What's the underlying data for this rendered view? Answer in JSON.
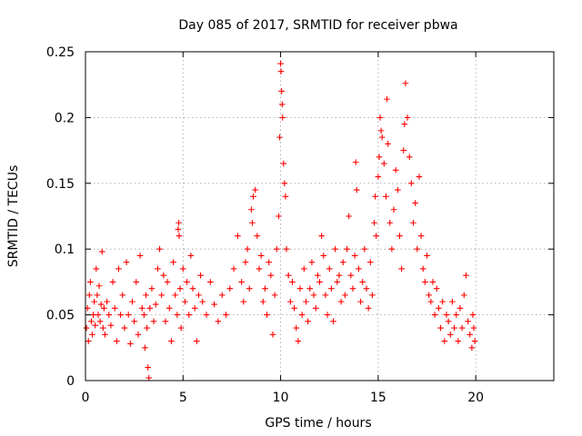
{
  "chart_data": {
    "type": "scatter",
    "title": "Day 085 of 2017, SRMTID for receiver pbwa",
    "xlabel": "GPS time / hours",
    "ylabel": "SRMTID / TECUs",
    "xlim": [
      0,
      24
    ],
    "ylim": [
      0,
      0.25
    ],
    "x_ticks": [
      0,
      5,
      10,
      15,
      20
    ],
    "x_tick_labels": [
      "0",
      "5",
      "10",
      "15",
      "20"
    ],
    "y_ticks": [
      0,
      0.05,
      0.1,
      0.15,
      0.2,
      0.25
    ],
    "y_tick_labels": [
      "0",
      "0.05",
      "0.1",
      "0.15",
      "0.2",
      "0.25"
    ],
    "grid": true,
    "marker": "+",
    "color": "#ff0000",
    "series": [
      {
        "name": "SRMTID",
        "points": [
          [
            0.05,
            0.04
          ],
          [
            0.1,
            0.055
          ],
          [
            0.15,
            0.03
          ],
          [
            0.2,
            0.065
          ],
          [
            0.25,
            0.075
          ],
          [
            0.3,
            0.045
          ],
          [
            0.35,
            0.035
          ],
          [
            0.4,
            0.05
          ],
          [
            0.45,
            0.06
          ],
          [
            0.5,
            0.042
          ],
          [
            0.55,
            0.085
          ],
          [
            0.6,
            0.065
          ],
          [
            0.65,
            0.05
          ],
          [
            0.7,
            0.072
          ],
          [
            0.75,
            0.045
          ],
          [
            0.8,
            0.058
          ],
          [
            0.85,
            0.098
          ],
          [
            0.9,
            0.04
          ],
          [
            0.95,
            0.055
          ],
          [
            1.0,
            0.035
          ],
          [
            1.1,
            0.06
          ],
          [
            1.2,
            0.05
          ],
          [
            1.3,
            0.042
          ],
          [
            1.4,
            0.075
          ],
          [
            1.5,
            0.055
          ],
          [
            1.6,
            0.03
          ],
          [
            1.7,
            0.085
          ],
          [
            1.8,
            0.05
          ],
          [
            1.9,
            0.065
          ],
          [
            2.0,
            0.04
          ],
          [
            2.1,
            0.09
          ],
          [
            2.2,
            0.05
          ],
          [
            2.3,
            0.028
          ],
          [
            2.4,
            0.06
          ],
          [
            2.5,
            0.045
          ],
          [
            2.6,
            0.075
          ],
          [
            2.7,
            0.035
          ],
          [
            2.8,
            0.095
          ],
          [
            2.9,
            0.055
          ],
          [
            3.0,
            0.05
          ],
          [
            3.05,
            0.025
          ],
          [
            3.1,
            0.065
          ],
          [
            3.15,
            0.04
          ],
          [
            3.2,
            0.01
          ],
          [
            3.25,
            0.002
          ],
          [
            3.3,
            0.055
          ],
          [
            3.4,
            0.07
          ],
          [
            3.5,
            0.045
          ],
          [
            3.6,
            0.058
          ],
          [
            3.7,
            0.085
          ],
          [
            3.8,
            0.1
          ],
          [
            3.9,
            0.065
          ],
          [
            4.0,
            0.08
          ],
          [
            4.1,
            0.045
          ],
          [
            4.2,
            0.075
          ],
          [
            4.3,
            0.055
          ],
          [
            4.4,
            0.03
          ],
          [
            4.5,
            0.09
          ],
          [
            4.6,
            0.065
          ],
          [
            4.7,
            0.05
          ],
          [
            4.75,
            0.115
          ],
          [
            4.78,
            0.12
          ],
          [
            4.8,
            0.11
          ],
          [
            4.85,
            0.07
          ],
          [
            4.9,
            0.04
          ],
          [
            5.0,
            0.085
          ],
          [
            5.1,
            0.06
          ],
          [
            5.2,
            0.075
          ],
          [
            5.3,
            0.05
          ],
          [
            5.4,
            0.095
          ],
          [
            5.5,
            0.07
          ],
          [
            5.6,
            0.055
          ],
          [
            5.7,
            0.03
          ],
          [
            5.8,
            0.065
          ],
          [
            5.9,
            0.08
          ],
          [
            6.0,
            0.06
          ],
          [
            6.2,
            0.05
          ],
          [
            6.4,
            0.075
          ],
          [
            6.6,
            0.058
          ],
          [
            6.8,
            0.045
          ],
          [
            7.0,
            0.065
          ],
          [
            7.2,
            0.05
          ],
          [
            7.4,
            0.07
          ],
          [
            7.6,
            0.085
          ],
          [
            7.8,
            0.11
          ],
          [
            8.0,
            0.075
          ],
          [
            8.1,
            0.06
          ],
          [
            8.2,
            0.09
          ],
          [
            8.3,
            0.1
          ],
          [
            8.4,
            0.07
          ],
          [
            8.5,
            0.13
          ],
          [
            8.55,
            0.12
          ],
          [
            8.6,
            0.14
          ],
          [
            8.7,
            0.145
          ],
          [
            8.8,
            0.11
          ],
          [
            8.9,
            0.085
          ],
          [
            9.0,
            0.095
          ],
          [
            9.1,
            0.06
          ],
          [
            9.2,
            0.07
          ],
          [
            9.3,
            0.05
          ],
          [
            9.4,
            0.09
          ],
          [
            9.5,
            0.08
          ],
          [
            9.6,
            0.035
          ],
          [
            9.7,
            0.065
          ],
          [
            9.8,
            0.1
          ],
          [
            9.9,
            0.125
          ],
          [
            9.95,
            0.185
          ],
          [
            10.0,
            0.241
          ],
          [
            10.02,
            0.235
          ],
          [
            10.05,
            0.22
          ],
          [
            10.08,
            0.21
          ],
          [
            10.1,
            0.2
          ],
          [
            10.15,
            0.165
          ],
          [
            10.2,
            0.15
          ],
          [
            10.25,
            0.14
          ],
          [
            10.3,
            0.1
          ],
          [
            10.4,
            0.08
          ],
          [
            10.5,
            0.06
          ],
          [
            10.6,
            0.075
          ],
          [
            10.7,
            0.055
          ],
          [
            10.8,
            0.04
          ],
          [
            10.9,
            0.03
          ],
          [
            11.0,
            0.07
          ],
          [
            11.1,
            0.05
          ],
          [
            11.2,
            0.085
          ],
          [
            11.3,
            0.06
          ],
          [
            11.4,
            0.045
          ],
          [
            11.5,
            0.07
          ],
          [
            11.6,
            0.09
          ],
          [
            11.7,
            0.065
          ],
          [
            11.8,
            0.055
          ],
          [
            11.9,
            0.08
          ],
          [
            12.0,
            0.075
          ],
          [
            12.1,
            0.11
          ],
          [
            12.2,
            0.095
          ],
          [
            12.3,
            0.065
          ],
          [
            12.4,
            0.05
          ],
          [
            12.5,
            0.085
          ],
          [
            12.6,
            0.07
          ],
          [
            12.7,
            0.045
          ],
          [
            12.8,
            0.1
          ],
          [
            12.9,
            0.075
          ],
          [
            13.0,
            0.08
          ],
          [
            13.1,
            0.06
          ],
          [
            13.2,
            0.09
          ],
          [
            13.3,
            0.065
          ],
          [
            13.4,
            0.1
          ],
          [
            13.5,
            0.125
          ],
          [
            13.6,
            0.08
          ],
          [
            13.7,
            0.07
          ],
          [
            13.8,
            0.095
          ],
          [
            13.85,
            0.166
          ],
          [
            13.9,
            0.145
          ],
          [
            14.0,
            0.085
          ],
          [
            14.1,
            0.06
          ],
          [
            14.2,
            0.075
          ],
          [
            14.3,
            0.1
          ],
          [
            14.4,
            0.07
          ],
          [
            14.5,
            0.055
          ],
          [
            14.6,
            0.09
          ],
          [
            14.7,
            0.065
          ],
          [
            14.8,
            0.12
          ],
          [
            14.85,
            0.14
          ],
          [
            14.9,
            0.11
          ],
          [
            15.0,
            0.155
          ],
          [
            15.05,
            0.17
          ],
          [
            15.1,
            0.2
          ],
          [
            15.15,
            0.19
          ],
          [
            15.2,
            0.185
          ],
          [
            15.3,
            0.165
          ],
          [
            15.4,
            0.14
          ],
          [
            15.45,
            0.214
          ],
          [
            15.5,
            0.18
          ],
          [
            15.6,
            0.12
          ],
          [
            15.7,
            0.1
          ],
          [
            15.8,
            0.13
          ],
          [
            15.9,
            0.16
          ],
          [
            16.0,
            0.145
          ],
          [
            16.1,
            0.11
          ],
          [
            16.2,
            0.085
          ],
          [
            16.3,
            0.175
          ],
          [
            16.35,
            0.195
          ],
          [
            16.4,
            0.226
          ],
          [
            16.5,
            0.2
          ],
          [
            16.6,
            0.17
          ],
          [
            16.7,
            0.15
          ],
          [
            16.8,
            0.12
          ],
          [
            16.9,
            0.135
          ],
          [
            17.0,
            0.1
          ],
          [
            17.1,
            0.155
          ],
          [
            17.2,
            0.11
          ],
          [
            17.3,
            0.085
          ],
          [
            17.4,
            0.075
          ],
          [
            17.5,
            0.095
          ],
          [
            17.6,
            0.065
          ],
          [
            17.7,
            0.06
          ],
          [
            17.8,
            0.075
          ],
          [
            17.9,
            0.05
          ],
          [
            18.0,
            0.07
          ],
          [
            18.1,
            0.055
          ],
          [
            18.2,
            0.04
          ],
          [
            18.3,
            0.06
          ],
          [
            18.4,
            0.03
          ],
          [
            18.5,
            0.05
          ],
          [
            18.6,
            0.045
          ],
          [
            18.7,
            0.035
          ],
          [
            18.8,
            0.06
          ],
          [
            18.9,
            0.04
          ],
          [
            19.0,
            0.05
          ],
          [
            19.1,
            0.03
          ],
          [
            19.2,
            0.055
          ],
          [
            19.3,
            0.04
          ],
          [
            19.4,
            0.065
          ],
          [
            19.5,
            0.08
          ],
          [
            19.6,
            0.045
          ],
          [
            19.7,
            0.035
          ],
          [
            19.8,
            0.025
          ],
          [
            19.85,
            0.05
          ],
          [
            19.9,
            0.04
          ],
          [
            19.95,
            0.03
          ]
        ]
      }
    ]
  }
}
